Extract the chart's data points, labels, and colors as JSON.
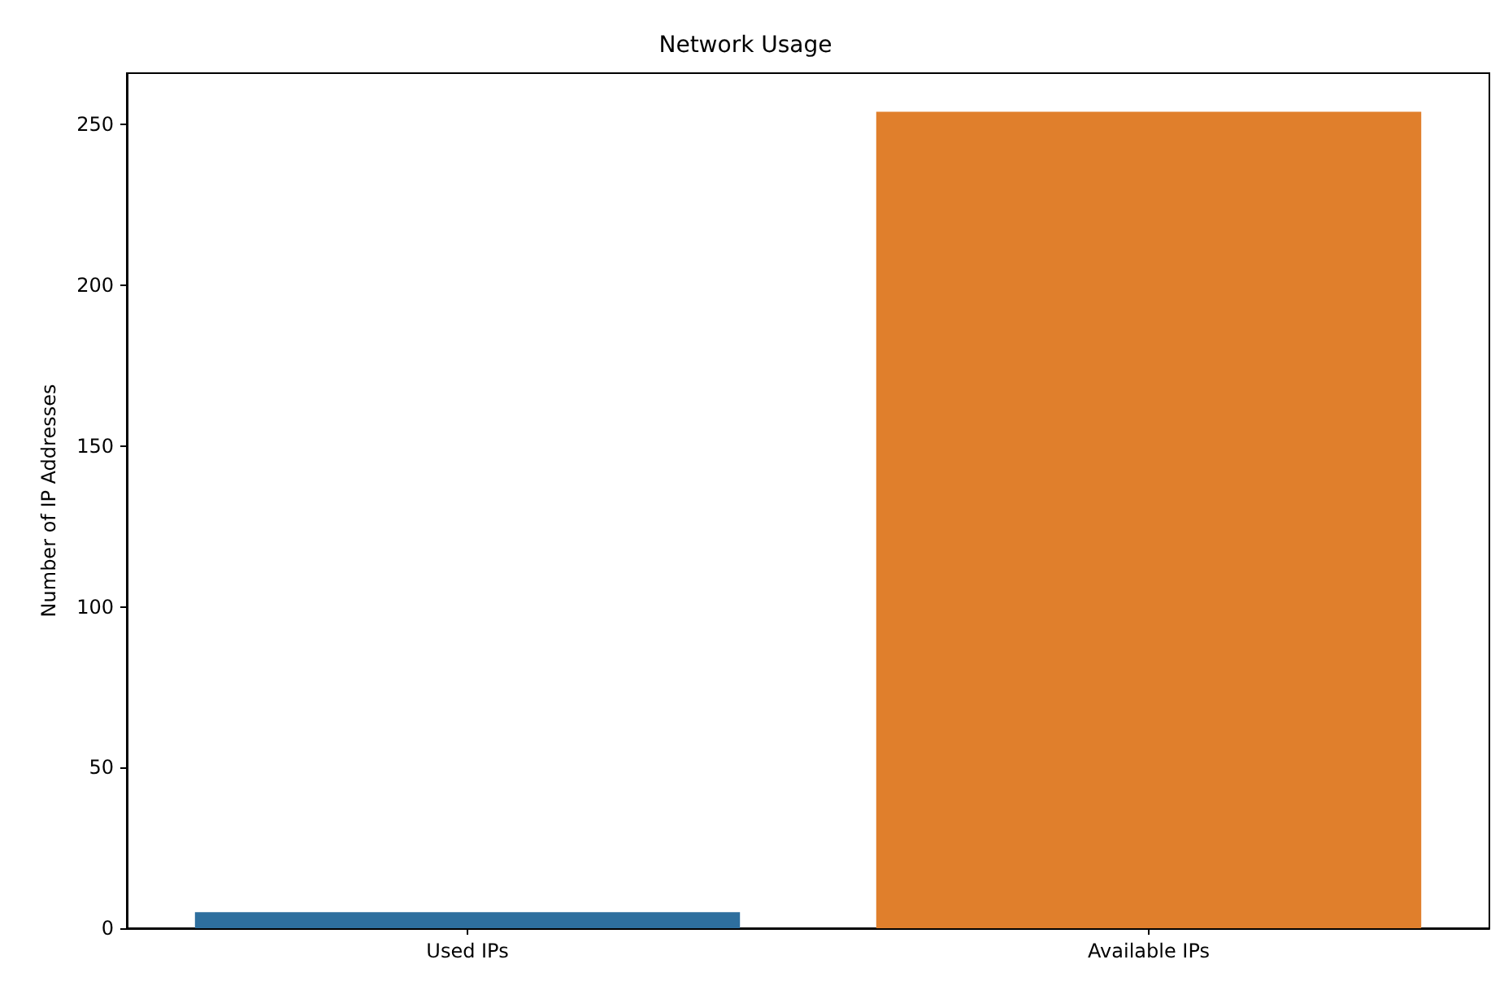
{
  "chart_data": {
    "type": "bar",
    "title": "Network Usage",
    "ylabel": "Number of IP Addresses",
    "categories": [
      "Used IPs",
      "Available IPs"
    ],
    "values": [
      5,
      254
    ],
    "colors": [
      "#2e6f9e",
      "#e07f2c"
    ],
    "ylim": [
      0,
      266
    ],
    "yticks": [
      0,
      50,
      100,
      150,
      200,
      250
    ],
    "grid": false
  }
}
